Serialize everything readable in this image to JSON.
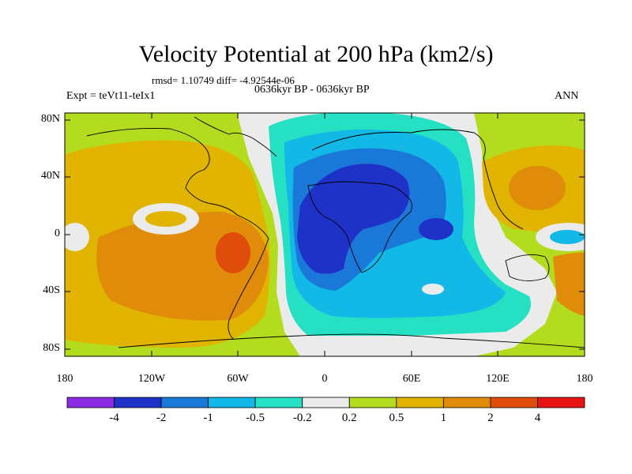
{
  "title": "Velocity Potential at 200 hPa (km2/s)",
  "stats_line": "rmsd= 1.10749 diff= -4.92544e-06",
  "period_line": "0636kyr BP - 0636kyr BP",
  "experiment": "Expt = teVt11-teIx1",
  "season": "ANN",
  "lat_labels": [
    "80N",
    "40N",
    "0",
    "40S",
    "80S"
  ],
  "lon_labels": [
    "180",
    "120W",
    "60W",
    "0",
    "60E",
    "120E",
    "180"
  ],
  "colorbar": {
    "colors": [
      "#8a2be2",
      "#1e32c8",
      "#1a78d8",
      "#12b8e6",
      "#26e0c4",
      "#ebebeb",
      "#b4dc1e",
      "#e0b400",
      "#e08c0a",
      "#e04c0a",
      "#e61414"
    ],
    "labels": [
      "-4",
      "-2",
      "-1",
      "-0.5",
      "-0.2",
      "0.2",
      "0.5",
      "1",
      "2",
      "4"
    ]
  }
}
